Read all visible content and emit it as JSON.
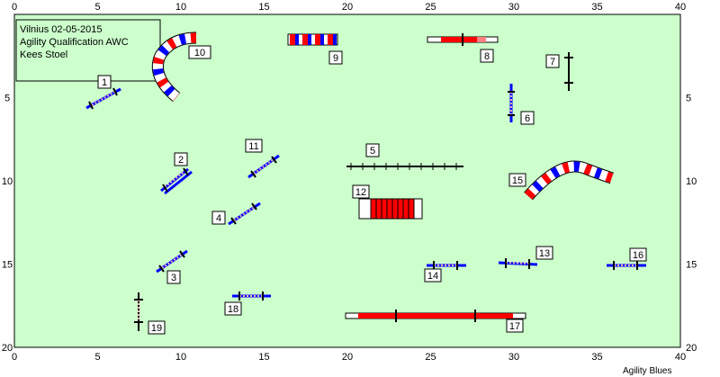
{
  "course": {
    "location_date": "Vilnius 02-05-2015",
    "class": "Agility Qualification AWC",
    "judge": "Kees Stoel",
    "brand": "Agility Blues"
  },
  "axes": {
    "x_ticks": [
      "0",
      "5",
      "10",
      "15",
      "20",
      "25",
      "30",
      "35",
      "40"
    ],
    "y_ticks": [
      "5",
      "10",
      "15",
      "20"
    ],
    "x_range": [
      0,
      40
    ],
    "y_range": [
      0,
      20
    ]
  },
  "colors": {
    "field": "#ccffcc",
    "red": "#ff0000",
    "blue": "#0000ff",
    "pole_base": "#f0b0b0",
    "dark": "#000000"
  },
  "obstacles": [
    {
      "number": "1",
      "kind": "jump",
      "x": 5.4,
      "y": 4.8
    },
    {
      "number": "2",
      "kind": "jump",
      "x": 9.8,
      "y": 10.0
    },
    {
      "number": "3",
      "kind": "jump",
      "x": 9.5,
      "y": 15.5
    },
    {
      "number": "4",
      "kind": "jump",
      "x": 13.8,
      "y": 12.0
    },
    {
      "number": "5",
      "kind": "dogwalk",
      "x": 23.5,
      "y": 9.0
    },
    {
      "number": "6",
      "kind": "jump",
      "x": 29.9,
      "y": 5.3
    },
    {
      "number": "7",
      "kind": "jump",
      "x": 33.8,
      "y": 3.2
    },
    {
      "number": "8",
      "kind": "seesaw",
      "x": 27.1,
      "y": 1.5
    },
    {
      "number": "9",
      "kind": "weave",
      "x": 18.0,
      "y": 1.5
    },
    {
      "number": "10",
      "kind": "tunnel",
      "x": 9.0,
      "y": 3.0
    },
    {
      "number": "11",
      "kind": "jump",
      "x": 14.8,
      "y": 8.6
    },
    {
      "number": "12",
      "kind": "tunnel",
      "x": 21.5,
      "y": 12.0
    },
    {
      "number": "13",
      "kind": "jump",
      "x": 30.2,
      "y": 15.0
    },
    {
      "number": "14",
      "kind": "jump",
      "x": 26.0,
      "y": 15.1
    },
    {
      "number": "15",
      "kind": "tunnel",
      "x": 34.0,
      "y": 10.0
    },
    {
      "number": "16",
      "kind": "jump",
      "x": 37.1,
      "y": 15.1
    },
    {
      "number": "17",
      "kind": "dogwalk",
      "x": 27.0,
      "y": 18.1
    },
    {
      "number": "18",
      "kind": "jump",
      "x": 14.3,
      "y": 17.1
    },
    {
      "number": "19",
      "kind": "jump",
      "x": 7.5,
      "y": 17.5
    }
  ]
}
